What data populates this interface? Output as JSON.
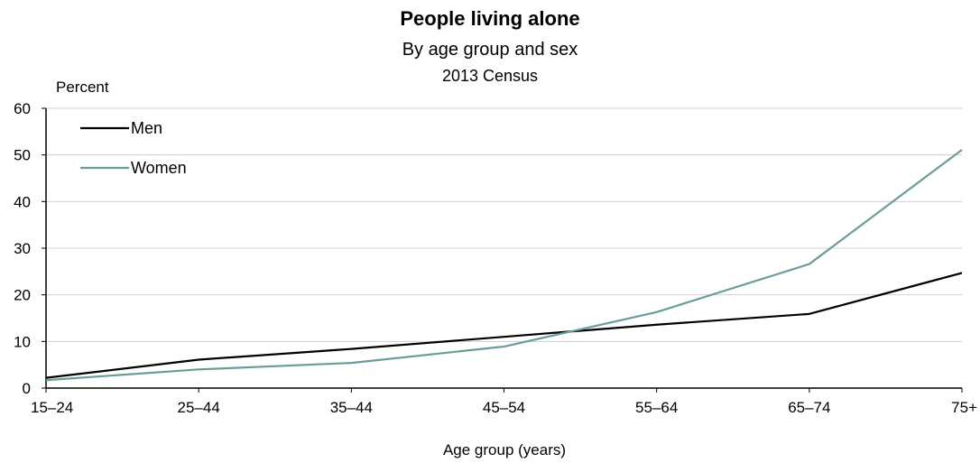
{
  "chart_data": {
    "type": "line",
    "title": "People living alone",
    "subtitle": "By age group and sex",
    "subtitle2": "2013 Census",
    "ylabel": "Percent",
    "xlabel": "Age group (years)",
    "ylim": [
      0,
      60
    ],
    "yticks": [
      0,
      10,
      20,
      30,
      40,
      50,
      60
    ],
    "categories": [
      "15–24",
      "25–44",
      "35–44",
      "45–54",
      "55–64",
      "65–74",
      "75+"
    ],
    "legend_position": "top-left",
    "grid": true,
    "series": [
      {
        "name": "Men",
        "color": "#000000",
        "values": [
          2.2,
          6.1,
          8.4,
          11.0,
          13.6,
          15.9,
          24.7
        ]
      },
      {
        "name": "Women",
        "color": "#6b9c9a",
        "values": [
          1.7,
          4.0,
          5.4,
          8.9,
          16.3,
          26.6,
          51.1
        ]
      }
    ]
  }
}
